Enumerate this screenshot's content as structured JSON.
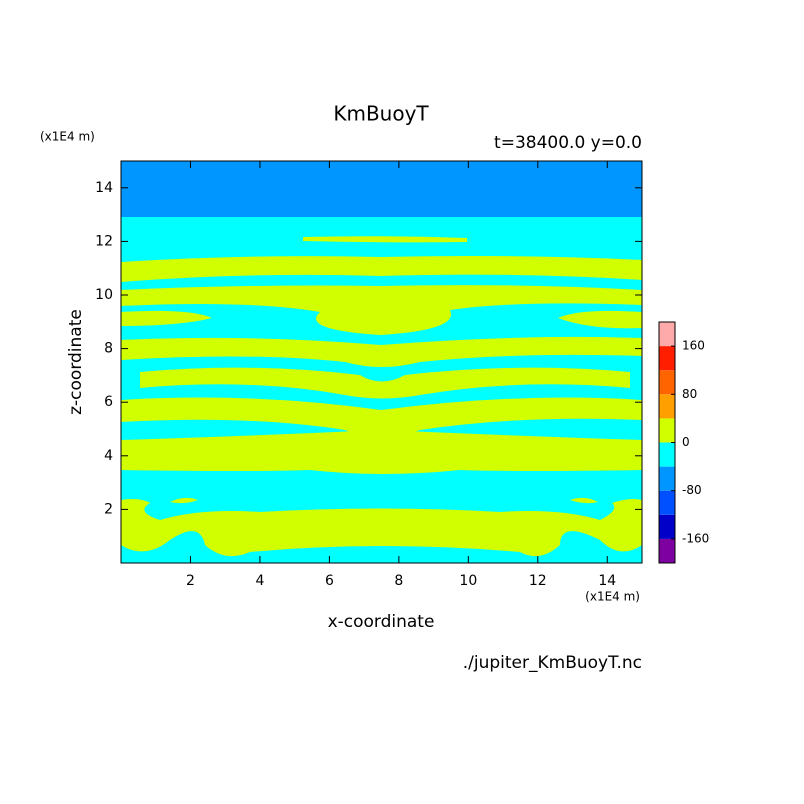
{
  "chart_data": {
    "type": "contour",
    "title": "KmBuoyT",
    "subtitle": "t=38400.0 y=0.0",
    "x_label": "x-coordinate",
    "y_label": "z-coordinate",
    "x_unit": "(x1E4 m)",
    "y_unit": "(x1E4 m)",
    "file_label": "./jupiter_KmBuoyT.nc",
    "xlim": [
      0,
      15
    ],
    "ylim": [
      0,
      15
    ],
    "xticks": [
      2,
      4,
      6,
      8,
      10,
      12,
      14
    ],
    "yticks": [
      2,
      4,
      6,
      8,
      10,
      12,
      14
    ],
    "colorbar": {
      "levels": [
        -200,
        -160,
        -120,
        -80,
        -40,
        0,
        40,
        80,
        120,
        160,
        200
      ],
      "colors": [
        "#7f00a0",
        "#0000c8",
        "#0050ff",
        "#0096ff",
        "#00ffff",
        "#d2ff00",
        "#ffa000",
        "#ff6400",
        "#ff1e00",
        "#ffaaaa"
      ],
      "ticks": [
        -160,
        -80,
        0,
        80,
        160
      ]
    }
  }
}
